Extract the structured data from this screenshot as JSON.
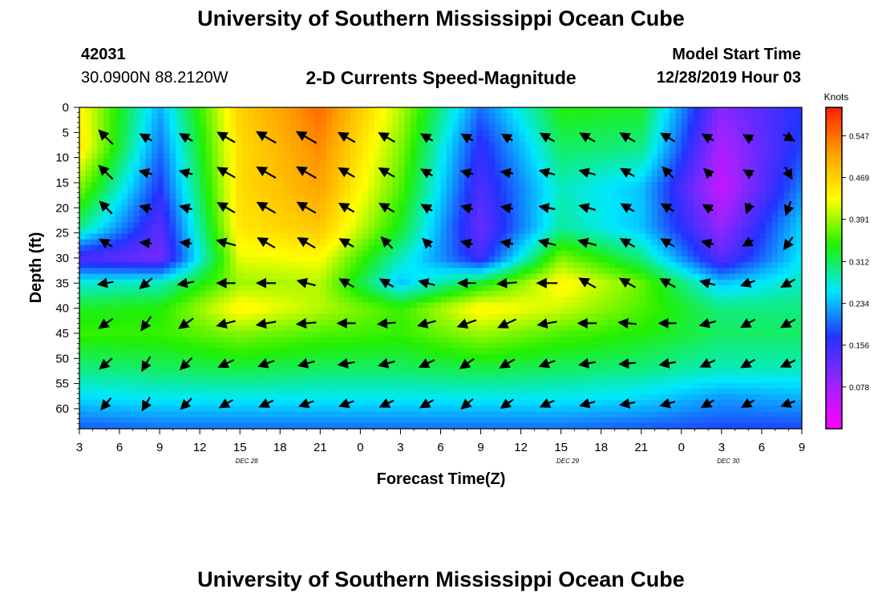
{
  "header": {
    "title": "University of Southern Mississippi Ocean Cube",
    "station_id": "42031",
    "location": "30.0900N 88.2120W",
    "subtitle": "2-D Currents Speed-Magnitude",
    "model_start_label": "Model Start Time",
    "model_start_value": "12/28/2019 Hour 03"
  },
  "footer": {
    "title": "University of Southern Mississippi Ocean Cube"
  },
  "chart_data": {
    "type": "heatmap",
    "title": "2-D Currents Speed-Magnitude",
    "xlabel": "Forecast Time(Z)",
    "ylabel": "Depth (ft)",
    "x_tick_labels": [
      "3",
      "6",
      "9",
      "12",
      "15",
      "18",
      "21",
      "0",
      "3",
      "6",
      "9",
      "12",
      "15",
      "18",
      "21",
      "0",
      "3",
      "6",
      "9"
    ],
    "date_labels": [
      "DEC 28",
      "DEC 29",
      "DEC 30"
    ],
    "x_range_hours": [
      3,
      57
    ],
    "y_ticks": [
      0,
      5,
      10,
      15,
      20,
      25,
      30,
      35,
      40,
      45,
      50,
      55,
      60
    ],
    "y_range_ft": [
      0,
      64
    ],
    "y_inverted": true,
    "colorbar": {
      "label": "Knots",
      "ticks": [
        0.547,
        0.469,
        0.391,
        0.312,
        0.234,
        0.156,
        0.078
      ],
      "range": [
        0,
        0.6
      ],
      "colors": [
        "#ff00ff",
        "#9a24ff",
        "#2233ff",
        "#00e8ff",
        "#22f000",
        "#ffff00",
        "#ffa000",
        "#ff2000"
      ]
    },
    "time_hours": [
      3,
      9,
      15,
      21,
      27,
      33,
      39,
      45,
      51,
      57
    ],
    "depths_ft": [
      0,
      8,
      16,
      24,
      30,
      35,
      40,
      45,
      52,
      58,
      64
    ],
    "speed_knots": [
      [
        0.44,
        0.23,
        0.47,
        0.55,
        0.4,
        0.2,
        0.34,
        0.33,
        0.1,
        0.17
      ],
      [
        0.45,
        0.2,
        0.46,
        0.53,
        0.38,
        0.16,
        0.31,
        0.3,
        0.07,
        0.18
      ],
      [
        0.38,
        0.17,
        0.46,
        0.51,
        0.36,
        0.14,
        0.28,
        0.24,
        0.05,
        0.21
      ],
      [
        0.3,
        0.13,
        0.45,
        0.48,
        0.33,
        0.12,
        0.29,
        0.24,
        0.09,
        0.25
      ],
      [
        0.14,
        0.11,
        0.42,
        0.43,
        0.28,
        0.15,
        0.38,
        0.3,
        0.13,
        0.26
      ],
      [
        0.27,
        0.28,
        0.39,
        0.4,
        0.24,
        0.33,
        0.44,
        0.37,
        0.24,
        0.28
      ],
      [
        0.33,
        0.34,
        0.44,
        0.4,
        0.35,
        0.44,
        0.41,
        0.36,
        0.3,
        0.3
      ],
      [
        0.35,
        0.35,
        0.38,
        0.36,
        0.35,
        0.39,
        0.36,
        0.34,
        0.31,
        0.31
      ],
      [
        0.3,
        0.31,
        0.32,
        0.31,
        0.31,
        0.32,
        0.31,
        0.3,
        0.28,
        0.28
      ],
      [
        0.25,
        0.26,
        0.26,
        0.26,
        0.26,
        0.26,
        0.26,
        0.25,
        0.22,
        0.23
      ],
      [
        0.19,
        0.2,
        0.2,
        0.2,
        0.2,
        0.2,
        0.2,
        0.19,
        0.18,
        0.18
      ]
    ],
    "vector_times_hours": [
      5,
      8,
      11,
      14,
      17,
      20,
      23,
      26,
      29,
      32,
      35,
      38,
      41,
      44,
      47,
      50,
      53,
      56
    ],
    "vector_depths_ft": [
      6,
      13,
      20,
      27,
      35,
      43,
      51,
      59
    ],
    "current_direction_deg": [
      [
        315,
        300,
        300,
        300,
        300,
        300,
        300,
        300,
        300,
        300,
        300,
        300,
        300,
        300,
        300,
        300,
        300,
        120
      ],
      [
        315,
        285,
        285,
        300,
        300,
        300,
        300,
        300,
        300,
        285,
        280,
        285,
        285,
        300,
        315,
        315,
        300,
        150
      ],
      [
        315,
        285,
        285,
        300,
        300,
        300,
        300,
        300,
        300,
        285,
        280,
        280,
        285,
        300,
        300,
        300,
        200,
        200
      ],
      [
        300,
        275,
        275,
        285,
        300,
        300,
        300,
        315,
        315,
        285,
        280,
        285,
        285,
        300,
        300,
        285,
        240,
        215
      ],
      [
        260,
        230,
        260,
        270,
        270,
        285,
        300,
        300,
        285,
        270,
        265,
        270,
        300,
        300,
        300,
        285,
        250,
        240
      ],
      [
        235,
        215,
        235,
        255,
        260,
        265,
        270,
        265,
        255,
        250,
        245,
        260,
        270,
        275,
        270,
        255,
        240,
        240
      ],
      [
        230,
        210,
        225,
        245,
        250,
        255,
        260,
        255,
        245,
        235,
        240,
        250,
        260,
        265,
        260,
        245,
        240,
        245
      ],
      [
        220,
        210,
        225,
        240,
        245,
        250,
        250,
        245,
        240,
        230,
        235,
        245,
        255,
        260,
        255,
        240,
        240,
        250
      ]
    ],
    "current_speed_knots": [
      [
        0.44,
        0.2,
        0.24,
        0.45,
        0.53,
        0.55,
        0.4,
        0.38,
        0.2,
        0.17,
        0.15,
        0.3,
        0.33,
        0.34,
        0.3,
        0.17,
        0.08,
        0.16
      ],
      [
        0.42,
        0.18,
        0.18,
        0.45,
        0.51,
        0.53,
        0.37,
        0.36,
        0.18,
        0.14,
        0.14,
        0.28,
        0.3,
        0.28,
        0.26,
        0.09,
        0.06,
        0.2
      ],
      [
        0.34,
        0.14,
        0.15,
        0.44,
        0.48,
        0.49,
        0.34,
        0.33,
        0.15,
        0.12,
        0.13,
        0.28,
        0.31,
        0.25,
        0.24,
        0.11,
        0.09,
        0.24
      ],
      [
        0.23,
        0.11,
        0.12,
        0.42,
        0.43,
        0.44,
        0.29,
        0.28,
        0.13,
        0.12,
        0.15,
        0.34,
        0.38,
        0.3,
        0.27,
        0.14,
        0.13,
        0.26
      ],
      [
        0.28,
        0.3,
        0.3,
        0.38,
        0.4,
        0.39,
        0.3,
        0.27,
        0.3,
        0.35,
        0.42,
        0.45,
        0.4,
        0.36,
        0.33,
        0.27,
        0.24,
        0.28
      ],
      [
        0.32,
        0.33,
        0.34,
        0.4,
        0.43,
        0.42,
        0.37,
        0.36,
        0.38,
        0.43,
        0.43,
        0.41,
        0.39,
        0.36,
        0.34,
        0.3,
        0.29,
        0.3
      ],
      [
        0.3,
        0.31,
        0.31,
        0.32,
        0.32,
        0.32,
        0.31,
        0.31,
        0.31,
        0.32,
        0.32,
        0.31,
        0.31,
        0.31,
        0.3,
        0.29,
        0.28,
        0.28
      ],
      [
        0.26,
        0.26,
        0.26,
        0.26,
        0.26,
        0.26,
        0.26,
        0.26,
        0.26,
        0.26,
        0.26,
        0.26,
        0.26,
        0.26,
        0.25,
        0.23,
        0.22,
        0.23
      ]
    ]
  }
}
